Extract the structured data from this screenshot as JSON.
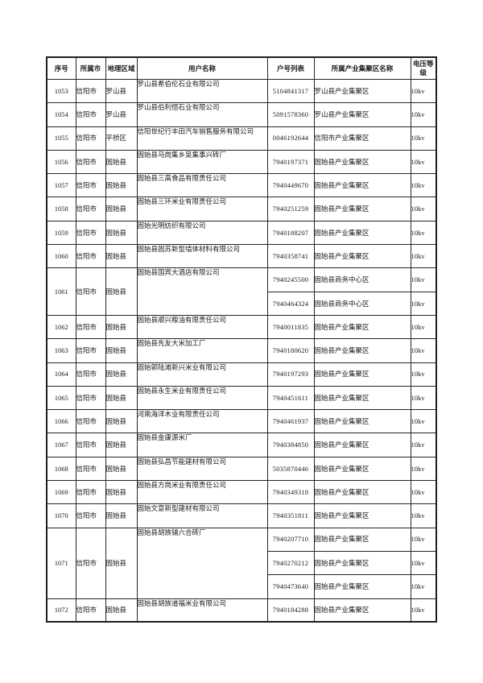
{
  "page": {
    "background_color": "#ffffff",
    "text_color": "#1a1a1a",
    "border_color": "#262626"
  },
  "table": {
    "columns": [
      {
        "key": "index",
        "label": "序号"
      },
      {
        "key": "city",
        "label": "所属市"
      },
      {
        "key": "region",
        "label": "地理区域"
      },
      {
        "key": "user",
        "label": "用户名称"
      },
      {
        "key": "account",
        "label": "户号列表"
      },
      {
        "key": "zone",
        "label": "所属产业集聚区名称"
      },
      {
        "key": "voltage",
        "label": "电压等级"
      }
    ],
    "rows": [
      {
        "index": "1053",
        "city": "信阳市",
        "region": "罗山县",
        "user": "罗山县希伯伦石业有限公司",
        "entries": [
          {
            "account": "5104841317",
            "zone": "罗山县产业集聚区",
            "voltage": "10kv"
          }
        ]
      },
      {
        "index": "1054",
        "city": "信阳市",
        "region": "罗山县",
        "user": "罗山县伯利恒石业有限公司",
        "entries": [
          {
            "account": "5091578360",
            "zone": "罗山县产业集聚区",
            "voltage": "10kv"
          }
        ]
      },
      {
        "index": "1055",
        "city": "信阳市",
        "region": "平桥区",
        "user": "信阳世纪行丰田汽车销售服务有限公司",
        "entries": [
          {
            "account": "0046192644",
            "zone": "信阳市产业集聚区",
            "voltage": "10kv"
          }
        ]
      },
      {
        "index": "1056",
        "city": "信阳市",
        "region": "固始县",
        "user": "固始县马岗集乡吴集事兴砖厂",
        "entries": [
          {
            "account": "7940197371",
            "zone": "固始县产业集聚区",
            "voltage": "10kv"
          }
        ]
      },
      {
        "index": "1057",
        "city": "信阳市",
        "region": "固始县",
        "user": "固始县三高食品有限责任公司",
        "entries": [
          {
            "account": "7940449670",
            "zone": "固始县产业集聚区",
            "voltage": "10kv"
          }
        ]
      },
      {
        "index": "1058",
        "city": "信阳市",
        "region": "固始县",
        "user": "固始县三环米业有限责任公司",
        "entries": [
          {
            "account": "7940251259",
            "zone": "固始县产业集聚区",
            "voltage": "10kv"
          }
        ]
      },
      {
        "index": "1059",
        "city": "信阳市",
        "region": "固始县",
        "user": "固始光明纺织有限公司",
        "entries": [
          {
            "account": "7940188207",
            "zone": "固始县产业集聚区",
            "voltage": "10kv"
          }
        ]
      },
      {
        "index": "1060",
        "city": "信阳市",
        "region": "固始县",
        "user": "固始县固苏新型墙体材料有限公司",
        "entries": [
          {
            "account": "7940358741",
            "zone": "固始县产业集聚区",
            "voltage": "10kv"
          }
        ]
      },
      {
        "index": "1061",
        "city": "信阳市",
        "region": "固始县",
        "user": "固始县国宾大酒店有限公司",
        "entries": [
          {
            "account": "7940245500",
            "zone": "固始县商务中心区",
            "voltage": "10kv"
          },
          {
            "account": "7940464324",
            "zone": "固始县商务中心区",
            "voltage": "10kv"
          }
        ]
      },
      {
        "index": "1062",
        "city": "信阳市",
        "region": "固始县",
        "user": "固始县顺兴粮油有限责任公司",
        "entries": [
          {
            "account": "7940011835",
            "zone": "固始县产业集聚区",
            "voltage": "10kv"
          }
        ]
      },
      {
        "index": "1063",
        "city": "信阳市",
        "region": "固始县",
        "user": "固始县先友大米加工厂",
        "entries": [
          {
            "account": "7940180620",
            "zone": "固始县产业集聚区",
            "voltage": "10kv"
          }
        ]
      },
      {
        "index": "1064",
        "city": "信阳市",
        "region": "固始县",
        "user": "固始郭陆滩新兴米业有限公司",
        "entries": [
          {
            "account": "7940197293",
            "zone": "固始县产业集聚区",
            "voltage": "10kv"
          }
        ]
      },
      {
        "index": "1065",
        "city": "信阳市",
        "region": "固始县",
        "user": "固始县永生米业有限责任公司",
        "entries": [
          {
            "account": "7940451611",
            "zone": "固始县产业集聚区",
            "voltage": "10kv"
          }
        ]
      },
      {
        "index": "1066",
        "city": "信阳市",
        "region": "固始县",
        "user": "河南海洋木业有限责任公司",
        "entries": [
          {
            "account": "7940461937",
            "zone": "固始县产业集聚区",
            "voltage": "10kv"
          }
        ]
      },
      {
        "index": "1067",
        "city": "信阳市",
        "region": "固始县",
        "user": "固始县金康源米厂",
        "entries": [
          {
            "account": "7940384850",
            "zone": "固始县产业集聚区",
            "voltage": "10kv"
          }
        ]
      },
      {
        "index": "1068",
        "city": "信阳市",
        "region": "固始县",
        "user": "固始县弘昌节能建材有限公司",
        "entries": [
          {
            "account": "5035870446",
            "zone": "固始县产业集聚区",
            "voltage": "10kv"
          }
        ]
      },
      {
        "index": "1069",
        "city": "信阳市",
        "region": "固始县",
        "user": "固始县方岗米业有限责任公司",
        "entries": [
          {
            "account": "7940349318",
            "zone": "固始县产业集聚区",
            "voltage": "10kv"
          }
        ]
      },
      {
        "index": "1070",
        "city": "信阳市",
        "region": "固始县",
        "user": "固始文意新型建材有限公司",
        "entries": [
          {
            "account": "7940351811",
            "zone": "固始县产业集聚区",
            "voltage": "10kv"
          }
        ]
      },
      {
        "index": "1071",
        "city": "信阳市",
        "region": "固始县",
        "user": "固始县胡族铺六合砖厂",
        "entries": [
          {
            "account": "7940207710",
            "zone": "固始县产业集聚区",
            "voltage": "10kv"
          },
          {
            "account": "7940270212",
            "zone": "固始县产业集聚区",
            "voltage": "10kv"
          },
          {
            "account": "7940473640",
            "zone": "固始县产业集聚区",
            "voltage": "10kv"
          }
        ]
      },
      {
        "index": "1072",
        "city": "信阳市",
        "region": "固始县",
        "user": "固始县胡族道福米业有限公司",
        "entries": [
          {
            "account": "7940184288",
            "zone": "固始县产业集聚区",
            "voltage": "10kv"
          }
        ]
      }
    ]
  }
}
